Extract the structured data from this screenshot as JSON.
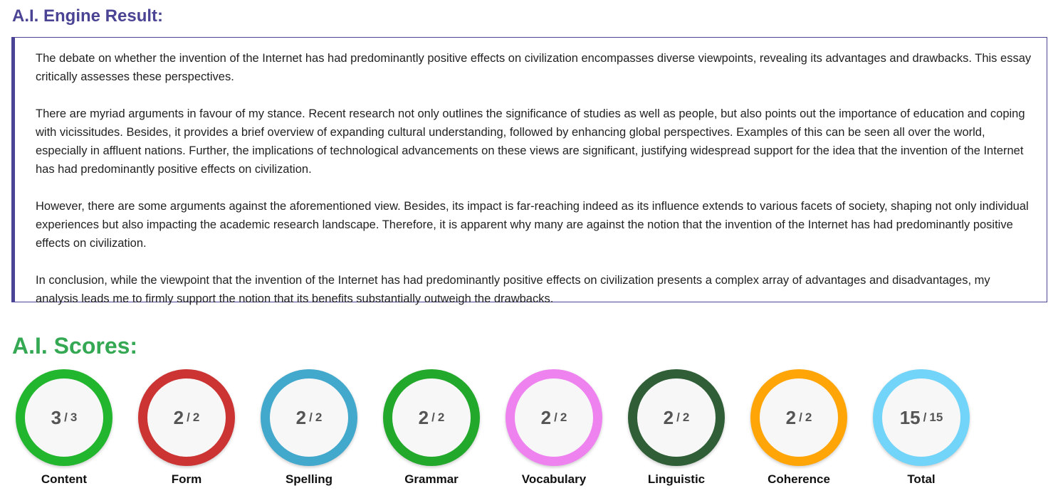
{
  "result": {
    "title": "A.I. Engine Result:",
    "paragraphs": [
      "The debate on whether the invention of the Internet has had predominantly positive effects on civilization encompasses diverse viewpoints, revealing its advantages and drawbacks. This essay critically assesses these perspectives.",
      "There are myriad arguments in favour of my stance. Recent research not only outlines the significance of studies as well as people, but also points out the importance of education and coping with vicissitudes. Besides, it provides a brief overview of expanding cultural understanding, followed by enhancing global perspectives. Examples of this can be seen all over the world, especially in affluent nations. Further, the implications of technological advancements on these views are significant, justifying widespread support for the idea that the invention of the Internet has had predominantly positive effects on civilization.",
      "However, there are some arguments against the aforementioned view. Besides, its impact is far-reaching indeed as its influence extends to various facets of society, shaping not only individual experiences but also impacting the academic research landscape. Therefore, it is apparent why many are against the notion that the invention of the Internet has had predominantly positive effects on civilization.",
      "In conclusion, while the viewpoint that the invention of the Internet has had predominantly positive effects on civilization presents a complex array of advantages and disadvantages, my analysis leads me to firmly support the notion that its benefits substantially outweigh the drawbacks."
    ]
  },
  "scores": {
    "title": "A.I. Scores:",
    "separator": "/",
    "items": [
      {
        "label": "Content",
        "score": 3,
        "max": 3,
        "color": "#22b52e"
      },
      {
        "label": "Form",
        "score": 2,
        "max": 2,
        "color": "#cc3333"
      },
      {
        "label": "Spelling",
        "score": 2,
        "max": 2,
        "color": "#42a8cc"
      },
      {
        "label": "Grammar",
        "score": 2,
        "max": 2,
        "color": "#22a82a"
      },
      {
        "label": "Vocabulary",
        "score": 2,
        "max": 2,
        "color": "#ee82ee"
      },
      {
        "label": "Linguistic",
        "score": 2,
        "max": 2,
        "color": "#2f5e37"
      },
      {
        "label": "Coherence",
        "score": 2,
        "max": 2,
        "color": "#ffa508"
      },
      {
        "label": "Total",
        "score": 15,
        "max": 15,
        "color": "#72d4f8"
      }
    ]
  }
}
